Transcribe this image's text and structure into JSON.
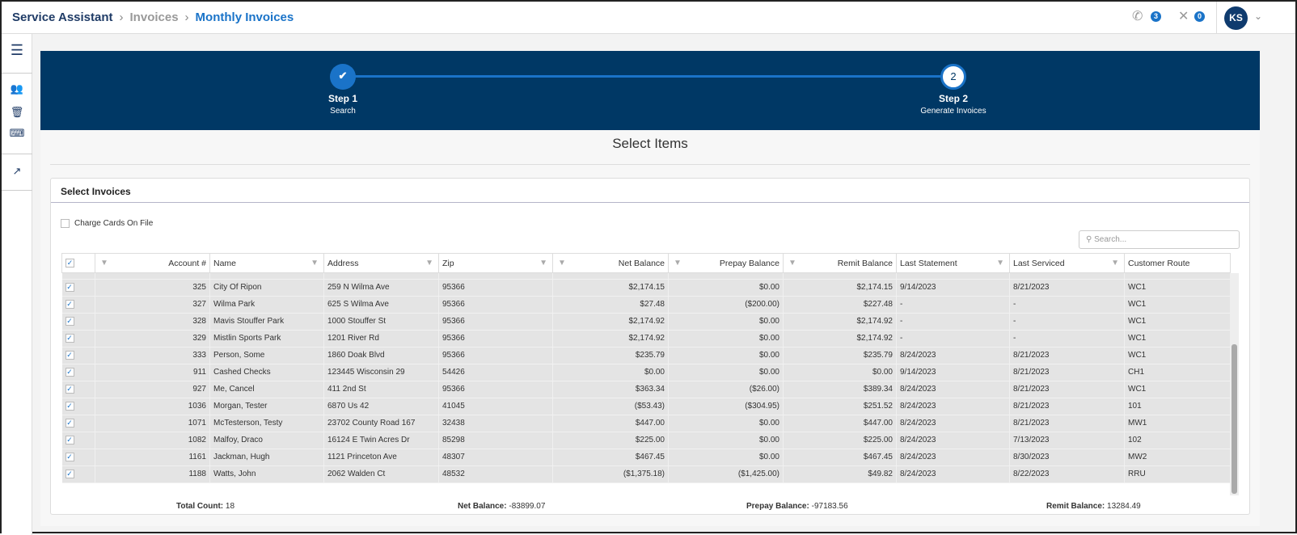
{
  "breadcrumb": {
    "app": "Service Assistant",
    "section": "Invoices",
    "current": "Monthly Invoices"
  },
  "header": {
    "calls_badge": "3",
    "missed_badge": "0",
    "avatar": "KS"
  },
  "stepper": {
    "steps": [
      {
        "num": "✔",
        "title": "Step 1",
        "subtitle": "Search"
      },
      {
        "num": "2",
        "title": "Step 2",
        "subtitle": "Generate Invoices"
      }
    ]
  },
  "page_title": "Select Items",
  "card": {
    "title": "Select Invoices",
    "charge_cards_label": "Charge Cards On File",
    "search_placeholder": "Search..."
  },
  "table": {
    "columns": [
      "Account #",
      "Name",
      "Address",
      "Zip",
      "Net Balance",
      "Prepay Balance",
      "Remit Balance",
      "Last Statement",
      "Last Serviced",
      "Customer Route"
    ],
    "rows": [
      [
        "325",
        "City Of Ripon",
        "259 N Wilma Ave",
        "95366",
        "$2,174.15",
        "$0.00",
        "$2,174.15",
        "9/14/2023",
        "8/21/2023",
        "WC1"
      ],
      [
        "327",
        "Wilma Park",
        "625 S Wilma Ave",
        "95366",
        "$27.48",
        "($200.00)",
        "$227.48",
        "-",
        "-",
        "WC1"
      ],
      [
        "328",
        "Mavis Stouffer Park",
        "1000 Stouffer St",
        "95366",
        "$2,174.92",
        "$0.00",
        "$2,174.92",
        "-",
        "-",
        "WC1"
      ],
      [
        "329",
        "Mistlin Sports Park",
        "1201 River Rd",
        "95366",
        "$2,174.92",
        "$0.00",
        "$2,174.92",
        "-",
        "-",
        "WC1"
      ],
      [
        "333",
        "Person, Some",
        "1860 Doak Blvd",
        "95366",
        "$235.79",
        "$0.00",
        "$235.79",
        "8/24/2023",
        "8/21/2023",
        "WC1"
      ],
      [
        "911",
        "Cashed Checks",
        "123445 Wisconsin 29",
        "54426",
        "$0.00",
        "$0.00",
        "$0.00",
        "9/14/2023",
        "8/21/2023",
        "CH1"
      ],
      [
        "927",
        "Me, Cancel",
        "411 2nd St",
        "95366",
        "$363.34",
        "($26.00)",
        "$389.34",
        "8/24/2023",
        "8/21/2023",
        "WC1"
      ],
      [
        "1036",
        "Morgan, Tester",
        "6870 Us 42",
        "41045",
        "($53.43)",
        "($304.95)",
        "$251.52",
        "8/24/2023",
        "8/21/2023",
        "101"
      ],
      [
        "1071",
        "McTesterson, Testy",
        "23702 County Road 167",
        "32438",
        "$447.00",
        "$0.00",
        "$447.00",
        "8/24/2023",
        "8/21/2023",
        "MW1"
      ],
      [
        "1082",
        "Malfoy, Draco",
        "16124 E Twin Acres Dr",
        "85298",
        "$225.00",
        "$0.00",
        "$225.00",
        "8/24/2023",
        "7/13/2023",
        "102"
      ],
      [
        "1161",
        "Jackman, Hugh",
        "1121 Princeton Ave",
        "48307",
        "$467.45",
        "$0.00",
        "$467.45",
        "8/24/2023",
        "8/30/2023",
        "MW2"
      ],
      [
        "1188",
        "Watts, John",
        "2062 Walden Ct",
        "48532",
        "($1,375.18)",
        "($1,425.00)",
        "$49.82",
        "8/24/2023",
        "8/22/2023",
        "RRU"
      ]
    ]
  },
  "footer": {
    "total_count_label": "Total Count:",
    "total_count": "18",
    "net_label": "Net Balance:",
    "net": "-83899.07",
    "prepay_label": "Prepay Balance:",
    "prepay": "-97183.56",
    "remit_label": "Remit Balance:",
    "remit": "13284.49"
  }
}
